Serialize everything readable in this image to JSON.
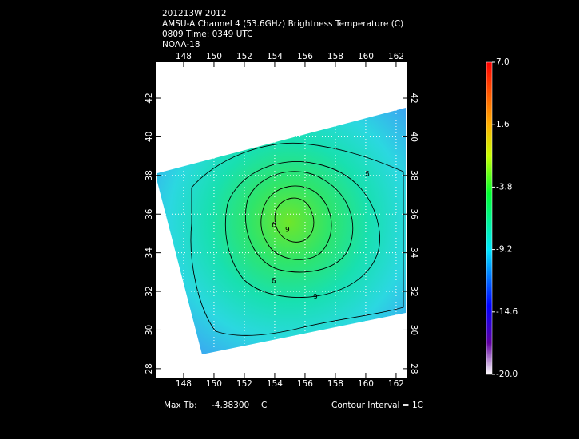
{
  "header": {
    "lines": [
      "201213W 2012",
      "AMSU-A Channel 4 (53.6GHz) Brightness Temperature (C)",
      "0809 Time: 0349 UTC",
      "NOAA-18"
    ]
  },
  "map": {
    "xlim": [
      146.16,
      162.74
    ],
    "ylim": [
      27.54,
      43.86
    ],
    "lon_ticks": [
      148,
      150,
      152,
      154,
      156,
      158,
      160,
      162
    ],
    "lat_ticks": [
      28,
      30,
      32,
      34,
      36,
      38,
      40,
      42
    ],
    "contour_labels": [
      "8",
      "9",
      "6",
      "8",
      "9"
    ]
  },
  "colorbar": {
    "lim": [
      -20,
      7
    ],
    "ticks": [
      {
        "value": 7,
        "label": "7.0"
      },
      1.6,
      -3.8,
      -9.2,
      -14.6,
      {
        "value": -20,
        "label": "-20.0"
      }
    ]
  },
  "footer": {
    "max_label": "Max Tb:",
    "max_value": "-4.38300",
    "unit": "C",
    "contour": "Contour Interval = 1C"
  }
}
